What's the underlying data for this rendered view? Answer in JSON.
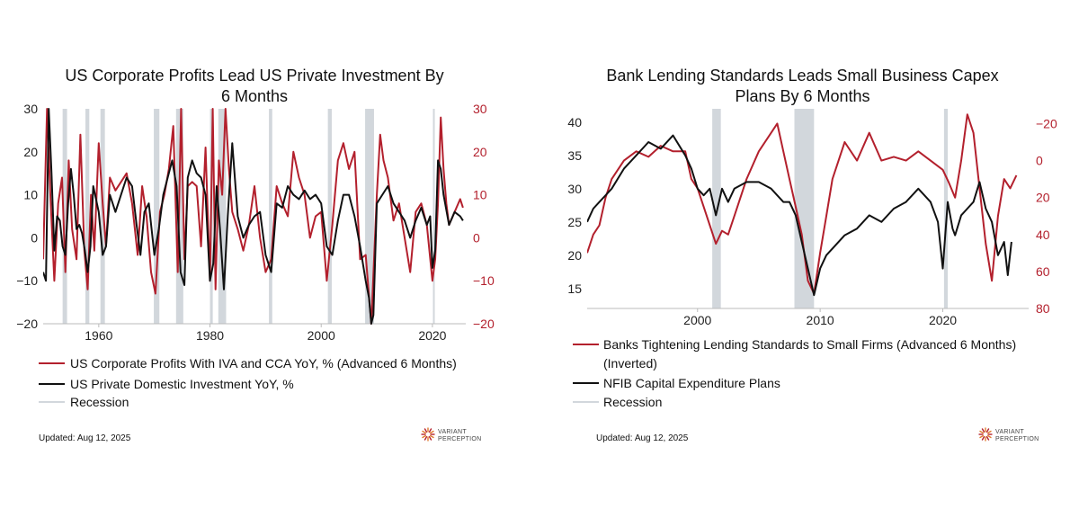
{
  "colors": {
    "red": "#b3202d",
    "black": "#111111",
    "recession": "#d2d7dc",
    "axis": "#888888"
  },
  "chart_data": [
    {
      "type": "line",
      "title_lines": [
        "US Corporate Profits Lead US Private Investment By",
        "6 Months"
      ],
      "x_range": [
        1950,
        2026
      ],
      "x_ticks": [
        1960,
        1980,
        2000,
        2020
      ],
      "x_tick_labels": [
        "1960",
        "1980",
        "2000",
        "2020"
      ],
      "y_left_range": [
        -20,
        30
      ],
      "y_left_ticks": [
        -20,
        -10,
        0,
        10,
        20,
        30
      ],
      "y_left_tick_labels": [
        "−20",
        "−10",
        "0",
        "10",
        "20",
        "30"
      ],
      "y_right_range": [
        -20,
        30
      ],
      "y_right_ticks": [
        -20,
        -10,
        0,
        10,
        20,
        30
      ],
      "y_right_tick_labels": [
        "−20",
        "−10",
        "0",
        "10",
        "20",
        "30"
      ],
      "recessions": [
        [
          1953.5,
          1954.3
        ],
        [
          1957.6,
          1958.3
        ],
        [
          1960.3,
          1961.1
        ],
        [
          1969.9,
          1970.9
        ],
        [
          1973.9,
          1975.2
        ],
        [
          1980.0,
          1980.5
        ],
        [
          1981.5,
          1982.9
        ],
        [
          1990.6,
          1991.2
        ],
        [
          2001.2,
          2001.9
        ],
        [
          2007.9,
          2009.5
        ],
        [
          2020.1,
          2020.4
        ]
      ],
      "series": [
        {
          "name": "US Corporate Profits With IVA and CCA YoY, % (Advanced 6 Months)",
          "axis": "right",
          "color_key": "red",
          "x": [
            1950,
            1950.7,
            1951.3,
            1952,
            1952.7,
            1953.4,
            1954,
            1954.6,
            1955.2,
            1956,
            1956.7,
            1957.4,
            1958,
            1958.6,
            1959.2,
            1960,
            1960.7,
            1961.3,
            1962,
            1963,
            1964,
            1965,
            1966,
            1967,
            1967.8,
            1968.6,
            1969.4,
            1970.2,
            1971,
            1971.8,
            1972.6,
            1973.4,
            1974.2,
            1974.8,
            1975.4,
            1976,
            1976.8,
            1977.6,
            1978.4,
            1979.2,
            1980,
            1980.5,
            1981,
            1981.6,
            1982.2,
            1982.8,
            1983.4,
            1984,
            1985,
            1986,
            1987,
            1988,
            1989,
            1990,
            1991,
            1992,
            1993,
            1994,
            1995,
            1996,
            1997,
            1998,
            1999,
            2000,
            2001,
            2002,
            2003,
            2004,
            2005,
            2006,
            2007,
            2008,
            2008.5,
            2009,
            2009.5,
            2010,
            2010.6,
            2011.2,
            2012,
            2013,
            2014,
            2015,
            2016,
            2017,
            2018,
            2019,
            2020,
            2020.5,
            2021,
            2021.5,
            2022,
            2022.5,
            2023,
            2024,
            2025,
            2025.5
          ],
          "values": [
            -5,
            30,
            10,
            -10,
            8,
            14,
            -8,
            18,
            2,
            -5,
            24,
            -3,
            -12,
            10,
            -3,
            22,
            8,
            -2,
            14,
            11,
            13,
            15,
            8,
            -4,
            12,
            5,
            -8,
            -13,
            6,
            10,
            16,
            26,
            -8,
            30,
            -5,
            12,
            13,
            12,
            -2,
            21,
            -10,
            30,
            -12,
            18,
            10,
            30,
            16,
            6,
            2,
            -3,
            3,
            12,
            0,
            -8,
            -5,
            12,
            8,
            5,
            20,
            14,
            10,
            0,
            5,
            6,
            -10,
            3,
            18,
            22,
            16,
            20,
            -5,
            -4,
            -12,
            -20,
            -5,
            10,
            24,
            18,
            14,
            4,
            8,
            0,
            -8,
            6,
            8,
            3,
            -10,
            -5,
            8,
            28,
            16,
            8,
            3,
            6,
            9,
            7
          ]
        },
        {
          "name": "US Private Domestic Investment YoY, %",
          "axis": "left",
          "color_key": "black",
          "x": [
            1950,
            1950.5,
            1951,
            1951.5,
            1952,
            1952.5,
            1953,
            1953.5,
            1954,
            1954.5,
            1955,
            1955.5,
            1956,
            1956.5,
            1957,
            1957.5,
            1958,
            1958.5,
            1959,
            1960,
            1960.7,
            1961.3,
            1962,
            1963,
            1964,
            1965,
            1966,
            1966.8,
            1967.5,
            1968.2,
            1969,
            1970,
            1970.8,
            1971.6,
            1972.4,
            1973.2,
            1974,
            1974.7,
            1975.4,
            1976,
            1976.8,
            1977.6,
            1978.4,
            1979.2,
            1980,
            1980.6,
            1981.2,
            1981.8,
            1982.5,
            1983.2,
            1984,
            1985,
            1986,
            1987,
            1988,
            1989,
            1990,
            1991,
            1992,
            1993,
            1994,
            1995,
            1996,
            1997,
            1998,
            1999,
            2000,
            2001,
            2002,
            2003,
            2004,
            2005,
            2006,
            2007,
            2008,
            2008.6,
            2009,
            2009.4,
            2010,
            2011,
            2012,
            2013,
            2014,
            2015,
            2016,
            2017,
            2018,
            2019,
            2019.6,
            2020,
            2020.5,
            2021,
            2021.5,
            2022,
            2023,
            2024,
            2025,
            2025.5
          ],
          "values": [
            -8,
            -10,
            30,
            15,
            -3,
            5,
            4,
            -2,
            -4,
            8,
            16,
            10,
            2,
            3,
            1,
            -3,
            -8,
            -2,
            12,
            6,
            -4,
            -2,
            10,
            6,
            10,
            14,
            12,
            3,
            -4,
            6,
            8,
            -4,
            2,
            10,
            14,
            18,
            12,
            -8,
            -11,
            14,
            18,
            15,
            14,
            10,
            -10,
            -6,
            12,
            2,
            -12,
            5,
            22,
            5,
            0,
            3,
            5,
            6,
            -4,
            -8,
            8,
            7,
            12,
            10,
            9,
            11,
            9,
            10,
            8,
            -2,
            -4,
            4,
            10,
            10,
            5,
            -2,
            -10,
            -14,
            -20,
            -18,
            8,
            10,
            12,
            8,
            6,
            4,
            0,
            4,
            7,
            3,
            5,
            -7,
            -3,
            18,
            16,
            10,
            3,
            6,
            5,
            4
          ]
        }
      ],
      "legend_entries": [
        {
          "label": "US Corporate Profits With IVA and CCA YoY, % (Advanced 6 Months)",
          "color_key": "red"
        },
        {
          "label": "US Private Domestic Investment YoY, %",
          "color_key": "black"
        },
        {
          "label": "Recession",
          "color_key": "recession"
        }
      ],
      "updated": "Updated: Aug 12, 2025"
    },
    {
      "type": "line",
      "title_lines": [
        "Bank Lending Standards Leads Small Business Capex",
        "Plans By 6 Months"
      ],
      "x_range": [
        1991,
        2027
      ],
      "x_ticks": [
        2000,
        2010,
        2020
      ],
      "x_tick_labels": [
        "2000",
        "2010",
        "2020"
      ],
      "y_left_range": [
        12,
        42
      ],
      "y_left_ticks": [
        15,
        20,
        25,
        30,
        35,
        40
      ],
      "y_left_tick_labels": [
        "15",
        "20",
        "25",
        "30",
        "35",
        "40"
      ],
      "y_right_range": [
        80,
        -28
      ],
      "y_right_ticks": [
        -20,
        0,
        20,
        40,
        60,
        80
      ],
      "y_right_tick_labels": [
        "−20",
        "0",
        "20",
        "40",
        "60",
        "80"
      ],
      "recessions": [
        [
          2001.2,
          2001.9
        ],
        [
          2007.9,
          2009.5
        ],
        [
          2020.1,
          2020.4
        ]
      ],
      "series": [
        {
          "name": "Banks Tightening Lending Standards to Small Firms (Advanced 6 Months) (Inverted)",
          "axis": "right",
          "color_key": "red",
          "x": [
            1991,
            1991.5,
            1992,
            1992.5,
            1993,
            1994,
            1995,
            1996,
            1997,
            1998,
            1999,
            1999.5,
            2000,
            2000.5,
            2001,
            2001.5,
            2002,
            2002.5,
            2003,
            2004,
            2005,
            2006,
            2006.5,
            2007,
            2007.5,
            2008,
            2008.5,
            2009,
            2009.5,
            2010,
            2010.5,
            2011,
            2011.5,
            2012,
            2013,
            2014,
            2015,
            2016,
            2017,
            2018,
            2019,
            2020,
            2020.5,
            2021,
            2021.5,
            2022,
            2022.5,
            2023,
            2023.5,
            2024,
            2024.5,
            2025,
            2025.5,
            2026
          ],
          "values": [
            50,
            40,
            35,
            20,
            10,
            0,
            -5,
            -2,
            -8,
            -5,
            -5,
            10,
            15,
            25,
            35,
            45,
            38,
            40,
            30,
            10,
            -5,
            -15,
            -20,
            -5,
            10,
            25,
            40,
            65,
            72,
            50,
            30,
            10,
            0,
            -10,
            0,
            -15,
            0,
            -2,
            0,
            -5,
            0,
            5,
            12,
            20,
            0,
            -25,
            -15,
            15,
            45,
            65,
            30,
            10,
            15,
            8
          ]
        },
        {
          "name": "NFIB Capital Expenditure Plans",
          "axis": "left",
          "color_key": "black",
          "x": [
            1991,
            1991.5,
            1992,
            1992.5,
            1993,
            1994,
            1995,
            1996,
            1997,
            1998,
            1999,
            1999.5,
            2000,
            2000.5,
            2001,
            2001.5,
            2002,
            2002.5,
            2003,
            2004,
            2005,
            2006,
            2007,
            2007.5,
            2008,
            2008.5,
            2009,
            2009.5,
            2010,
            2010.5,
            2011,
            2012,
            2013,
            2014,
            2015,
            2016,
            2017,
            2018,
            2019,
            2019.6,
            2020,
            2020.4,
            2020.8,
            2021,
            2021.5,
            2022,
            2022.5,
            2023,
            2023.5,
            2024,
            2024.5,
            2025,
            2025.3,
            2025.6
          ],
          "values": [
            25,
            27,
            28,
            29,
            30,
            33,
            35,
            37,
            36,
            38,
            35,
            33,
            30,
            29,
            30,
            26,
            30,
            28,
            30,
            31,
            31,
            30,
            28,
            28,
            26,
            22,
            18,
            14,
            18,
            20,
            21,
            23,
            24,
            26,
            25,
            27,
            28,
            30,
            28,
            25,
            18,
            28,
            24,
            23,
            26,
            27,
            28,
            31,
            27,
            25,
            20,
            22,
            17,
            22
          ]
        }
      ],
      "legend_entries": [
        {
          "label": "Banks Tightening Lending Standards to Small Firms (Advanced 6 Months)",
          "label2": "(Inverted)",
          "color_key": "red"
        },
        {
          "label": "NFIB Capital Expenditure Plans",
          "color_key": "black"
        },
        {
          "label": "Recession",
          "color_key": "recession"
        }
      ],
      "updated": "Updated: Aug 12, 2025"
    }
  ],
  "logo": {
    "line1": "VARIANT",
    "line2": "PERCEPTION"
  }
}
